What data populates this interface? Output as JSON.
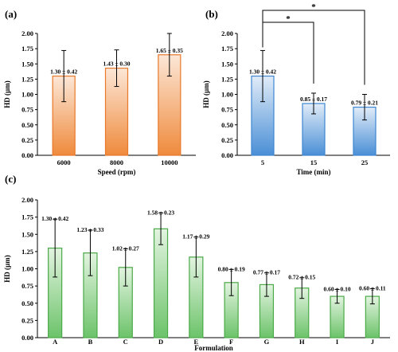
{
  "panel_labels": {
    "a": "(a)",
    "b": "(b)",
    "c": "(c)"
  },
  "colors": {
    "orange_top": "#fce7d7",
    "orange_bottom": "#ef8a3c",
    "orange_edge": "#e8782a",
    "blue_top": "#e1ecf8",
    "blue_bottom": "#4a8fd6",
    "blue_edge": "#3e86d0",
    "green_top": "#e3f4e0",
    "green_bottom": "#6cc36a",
    "green_edge": "#4aaa48",
    "axis": "#000000",
    "error_bar": "#000000"
  },
  "chart_data": [
    {
      "id": "a",
      "type": "bar",
      "title": "",
      "xlabel": "Speed (rpm)",
      "ylabel": "HD (µm)",
      "categories": [
        "6000",
        "8000",
        "10000"
      ],
      "values": [
        1.3,
        1.43,
        1.65
      ],
      "errors": [
        0.42,
        0.3,
        0.35
      ],
      "data_labels": [
        "1.30 ± 0.42",
        "1.43 ± 0.30",
        "1.65 ± 0.35"
      ],
      "ylim": [
        0,
        2.0
      ],
      "yticks": [
        "0.00",
        "0.25",
        "0.50",
        "0.75",
        "1.00",
        "1.25",
        "1.50",
        "1.75",
        "2.00"
      ],
      "grid": false,
      "color_scheme": "orange"
    },
    {
      "id": "b",
      "type": "bar",
      "title": "",
      "xlabel": "Time (min)",
      "ylabel": "HD (µm)",
      "categories": [
        "5",
        "15",
        "25"
      ],
      "values": [
        1.3,
        0.85,
        0.79
      ],
      "errors": [
        0.42,
        0.17,
        0.21
      ],
      "data_labels": [
        "1.30 ± 0.42",
        "0.85 ± 0.17",
        "0.79 ± 0.21"
      ],
      "ylim": [
        0,
        2.0
      ],
      "yticks": [
        "0.00",
        "0.25",
        "0.50",
        "0.75",
        "1.00",
        "1.25",
        "1.50",
        "1.75",
        "2.00"
      ],
      "grid": false,
      "color_scheme": "blue",
      "significance": [
        {
          "from": "5",
          "to": "15",
          "label": "*"
        },
        {
          "from": "5",
          "to": "25",
          "label": "*"
        }
      ]
    },
    {
      "id": "c",
      "type": "bar",
      "title": "",
      "xlabel": "Formulation",
      "ylabel": "HD (µm)",
      "categories": [
        "A",
        "B",
        "C",
        "D",
        "E",
        "F",
        "G",
        "H",
        "I",
        "J"
      ],
      "values": [
        1.3,
        1.23,
        1.02,
        1.58,
        1.17,
        0.8,
        0.77,
        0.72,
        0.6,
        0.6
      ],
      "errors": [
        0.42,
        0.33,
        0.27,
        0.23,
        0.29,
        0.19,
        0.17,
        0.15,
        0.1,
        0.11
      ],
      "data_labels": [
        "1.30 ± 0.42",
        "1.23 ± 0.33",
        "1.02 ± 0.27",
        "1.58 ± 0.23",
        "1.17 ± 0.29",
        "0.80 ± 0.19",
        "0.77 ± 0.17",
        "0.72 ± 0.15",
        "0.60 ± 0.10",
        "0.60 ± 0.11"
      ],
      "ylim": [
        0,
        2.0
      ],
      "yticks": [
        "0.00",
        "0.25",
        "0.50",
        "0.75",
        "1.00",
        "1.25",
        "1.50",
        "1.75",
        "2.00"
      ],
      "grid": false,
      "color_scheme": "green"
    }
  ]
}
